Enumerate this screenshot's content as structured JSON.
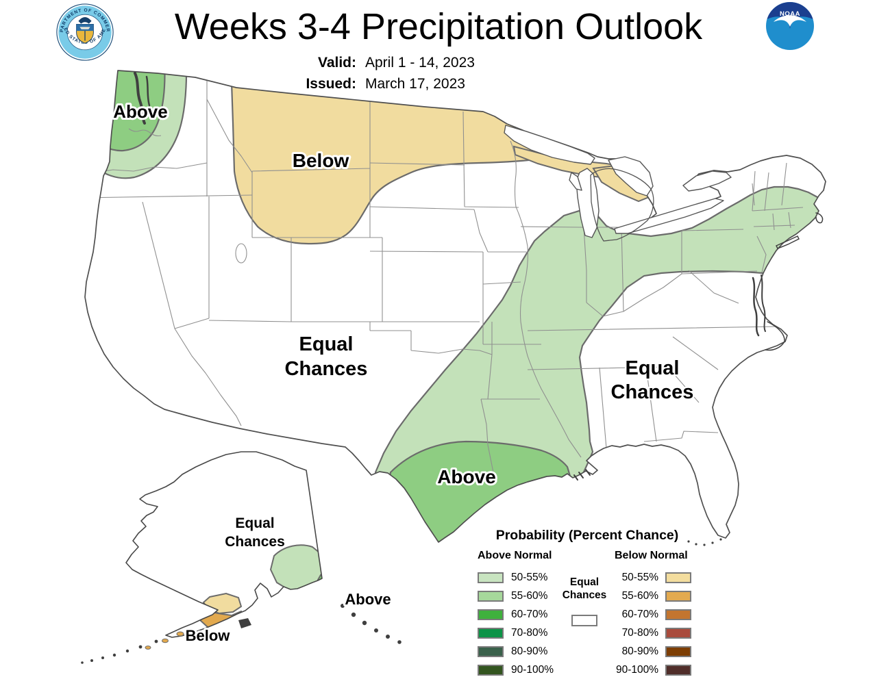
{
  "header": {
    "title": "Weeks 3-4 Precipitation Outlook",
    "valid_label": "Valid:",
    "valid_date": "April 1 - 14, 2023",
    "issued_label": "Issued:",
    "issued_date": "March 17, 2023",
    "noaa_logo_text": "NOAA",
    "doc_seal_text_top": "DEPARTMENT OF COMMERCE",
    "doc_seal_text_bottom": "UNITED STATES OF AMERICA"
  },
  "map": {
    "labels": {
      "pnw_above": "Above",
      "plains_below": "Below",
      "central_equal_1": "Equal",
      "central_equal_2": "Chances",
      "southeast_equal_1": "Equal",
      "southeast_equal_2": "Chances",
      "gulf_above": "Above",
      "ak_equal_1": "Equal",
      "ak_equal_2": "Chances",
      "ak_above": "Above",
      "ak_below": "Below"
    },
    "regions": {
      "pnw_outer": {
        "label": "Above",
        "category": "above-normal",
        "probability": "50-55%",
        "color": "#c3e1b9"
      },
      "pnw_inner": {
        "label": "Above",
        "category": "above-normal",
        "probability": "55-60%",
        "color": "#8ecd82"
      },
      "northern_plains": {
        "label": "Below",
        "category": "below-normal",
        "probability": "50-55%",
        "color": "#f1dc9f"
      },
      "michigan_up": {
        "label": "Below",
        "category": "below-normal",
        "probability": "50-55%",
        "color": "#f1dc9f"
      },
      "michigan_lower": {
        "label": "Below",
        "category": "below-normal",
        "probability": "50-55%",
        "color": "#f1dc9f"
      },
      "south_ne_band": {
        "label": "Above",
        "category": "above-normal",
        "probability": "50-55%",
        "color": "#c3e1b9"
      },
      "gulf_inner": {
        "label": "Above",
        "category": "above-normal",
        "probability": "55-60%",
        "color": "#8ecd82"
      },
      "ak_southcentral": {
        "label": "Above",
        "category": "above-normal",
        "probability": "50-55%",
        "color": "#c3e1b9"
      },
      "ak_panhandle": {
        "label": "Above",
        "category": "above-normal",
        "probability": "55-60%",
        "color": "#7cc771"
      },
      "ak_peninsula_tan": {
        "label": "Below",
        "category": "below-normal",
        "probability": "50-55%",
        "color": "#f1dc9f"
      },
      "ak_peninsula_orng": {
        "label": "Below",
        "category": "below-normal",
        "probability": "55-60%",
        "color": "#e2a94e"
      }
    }
  },
  "legend": {
    "title": "Probability (Percent Chance)",
    "above": {
      "heading": "Above Normal",
      "rows": [
        {
          "range": "50-55%",
          "color": "#c8e4c0"
        },
        {
          "range": "55-60%",
          "color": "#a6d89b"
        },
        {
          "range": "60-70%",
          "color": "#3fb13d"
        },
        {
          "range": "70-80%",
          "color": "#0c9346"
        },
        {
          "range": "80-90%",
          "color": "#3a614b"
        },
        {
          "range": "90-100%",
          "color": "#33551f"
        }
      ]
    },
    "below": {
      "heading": "Below Normal",
      "rows": [
        {
          "range": "50-55%",
          "color": "#f3dd9e"
        },
        {
          "range": "55-60%",
          "color": "#e3aa4f"
        },
        {
          "range": "60-70%",
          "color": "#c3752f"
        },
        {
          "range": "70-80%",
          "color": "#a94b3c"
        },
        {
          "range": "80-90%",
          "color": "#7d3e04"
        },
        {
          "range": "90-100%",
          "color": "#502e2a"
        }
      ]
    },
    "equal": {
      "line1": "Equal",
      "line2": "Chances",
      "box_color": "#ffffff"
    }
  }
}
